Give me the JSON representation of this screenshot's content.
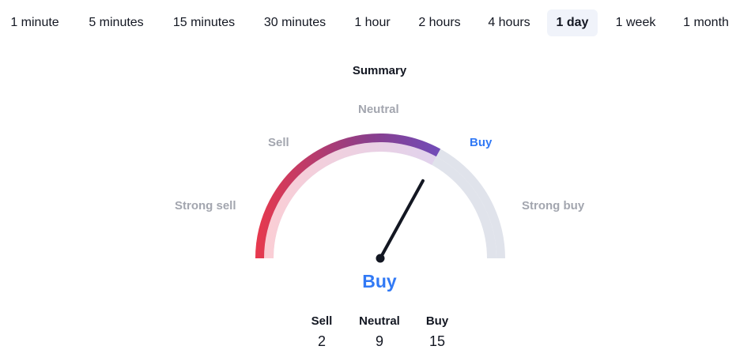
{
  "tabs": [
    {
      "label": "1 minute"
    },
    {
      "label": "5 minutes"
    },
    {
      "label": "15 minutes"
    },
    {
      "label": "30 minutes"
    },
    {
      "label": "1 hour"
    },
    {
      "label": "2 hours"
    },
    {
      "label": "4 hours"
    },
    {
      "label": "1 day",
      "active": true
    },
    {
      "label": "1 week"
    },
    {
      "label": "1 month"
    }
  ],
  "summary": {
    "title": "Summary",
    "gauge_labels": {
      "strong_sell": "Strong sell",
      "sell": "Sell",
      "neutral": "Neutral",
      "buy": "Buy",
      "strong_buy": "Strong buy"
    },
    "gauge_value": 0.66,
    "result": "Buy",
    "counts": {
      "sell": {
        "label": "Sell",
        "value": "2"
      },
      "neutral": {
        "label": "Neutral",
        "value": "9"
      },
      "buy": {
        "label": "Buy",
        "value": "15"
      }
    }
  },
  "colors": {
    "accent": "#3179f5",
    "active_tab_bg": "#f0f3fa",
    "sell_red": "#e8394d",
    "neutral_purple": "#8b3e8a",
    "buy_purple": "#6a4fc4",
    "track": "#e0e3eb"
  }
}
